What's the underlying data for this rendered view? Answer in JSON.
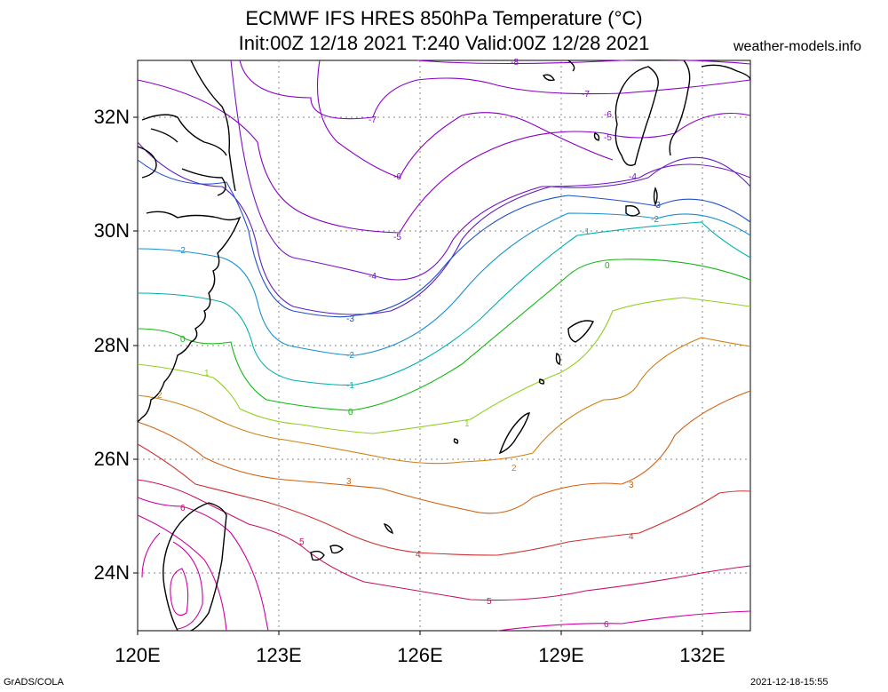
{
  "header": {
    "title_line1": "ECMWF IFS HRES 850hPa Temperature (°C)",
    "title_line2": "Init:00Z 12/18 2021 T:240 Valid:00Z 12/28 2021",
    "site": "weather-models.info"
  },
  "axes": {
    "lat_labels": [
      "32N",
      "30N",
      "28N",
      "26N",
      "24N"
    ],
    "lon_labels": [
      "120E",
      "123E",
      "126E",
      "129E",
      "132E"
    ]
  },
  "footer": {
    "left": "GrADS/COLA",
    "right": "2021-12-18-15:55"
  },
  "contour_labels": [
    "-8",
    "-7",
    "-6",
    "-5",
    "-4",
    "-3",
    "-2",
    "-1",
    "0",
    "1",
    "2",
    "3",
    "4",
    "5",
    "6"
  ],
  "colors": {
    "-8": "#8a00c8",
    "-7": "#8a00c8",
    "-6": "#8a00c8",
    "-5": "#7a10c8",
    "-4": "#6020c0",
    "-3": "#2050c8",
    "-2": "#1890d0",
    "-1": "#00b0b0",
    "0": "#10b810",
    "1": "#90d020",
    "2": "#d08010",
    "3": "#d06010",
    "4": "#d03030",
    "5": "#c81060",
    "6": "#d000a0"
  }
}
